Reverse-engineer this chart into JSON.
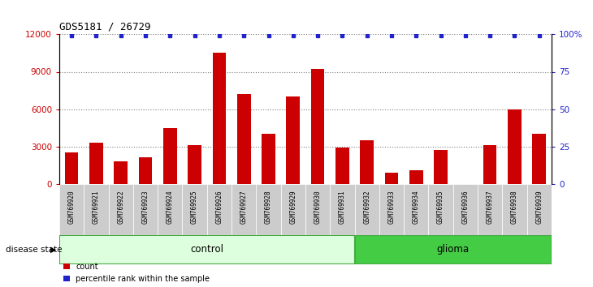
{
  "title": "GDS5181 / 26729",
  "samples": [
    "GSM769920",
    "GSM769921",
    "GSM769922",
    "GSM769923",
    "GSM769924",
    "GSM769925",
    "GSM769926",
    "GSM769927",
    "GSM769928",
    "GSM769929",
    "GSM769930",
    "GSM769931",
    "GSM769932",
    "GSM769933",
    "GSM769934",
    "GSM769935",
    "GSM769936",
    "GSM769937",
    "GSM769938",
    "GSM769939"
  ],
  "counts": [
    2500,
    3300,
    1800,
    2100,
    4500,
    3100,
    10500,
    7200,
    4000,
    7000,
    9200,
    2900,
    3500,
    900,
    1100,
    2700,
    0,
    3100,
    6000,
    4000
  ],
  "control_count": 12,
  "glioma_count": 8,
  "bar_color": "#cc0000",
  "dot_color": "#2222cc",
  "control_color_light": "#ddffdd",
  "glioma_color": "#44cc44",
  "ylim_left": [
    0,
    12000
  ],
  "ylim_right": [
    0,
    100
  ],
  "yticks_left": [
    0,
    3000,
    6000,
    9000,
    12000
  ],
  "yticks_right": [
    0,
    25,
    50,
    75,
    100
  ],
  "background_color": "#ffffff",
  "xticklabel_bg": "#cccccc",
  "legend_count_label": "count",
  "legend_pct_label": "percentile rank within the sample",
  "disease_state_label": "disease state",
  "control_label": "control",
  "glioma_label": "glioma"
}
